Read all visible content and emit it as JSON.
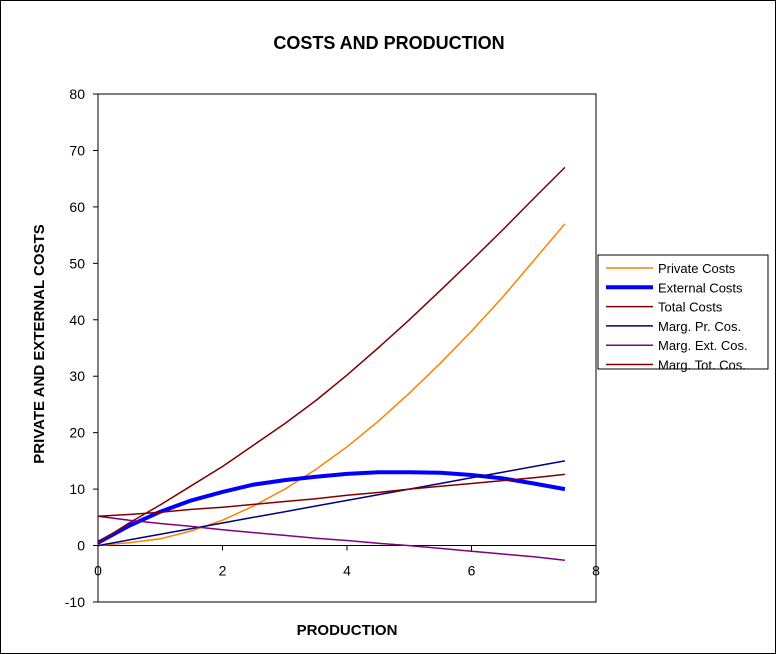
{
  "chart_data": {
    "type": "line",
    "title": "COSTS AND PRODUCTION",
    "xlabel": "PRODUCTION",
    "ylabel": "PRIVATE AND EXTERNAL COSTS",
    "xlim": [
      0,
      8
    ],
    "ylim": [
      -10,
      80
    ],
    "xticks": [
      0,
      2,
      4,
      6,
      8
    ],
    "yticks": [
      -10,
      0,
      10,
      20,
      30,
      40,
      50,
      60,
      70,
      80
    ],
    "grid": false,
    "legend_position": "right",
    "x": [
      0,
      0.5,
      1,
      1.5,
      2,
      2.5,
      3,
      3.5,
      4,
      4.5,
      5,
      5.5,
      6,
      6.5,
      7,
      7.5
    ],
    "series": [
      {
        "name": "Private Costs",
        "color": "#ff8000",
        "width": 1.5,
        "values": [
          0,
          0.5,
          1.2,
          2.6,
          4.5,
          7,
          10,
          13.5,
          17.5,
          22,
          27,
          32.3,
          38,
          44,
          50.5,
          57
        ]
      },
      {
        "name": "External Costs",
        "color": "#0000ff",
        "width": 4,
        "values": [
          0.5,
          3.5,
          6,
          8,
          9.5,
          10.8,
          11.6,
          12.2,
          12.7,
          13,
          13,
          12.9,
          12.5,
          11.9,
          11,
          10
        ]
      },
      {
        "name": "Total Costs",
        "color": "#800000",
        "width": 1.5,
        "values": [
          0.5,
          4,
          7.2,
          10.6,
          14,
          17.8,
          21.6,
          25.7,
          30.2,
          35,
          40,
          45.2,
          50.5,
          55.9,
          61.5,
          67
        ]
      },
      {
        "name": "Marg. Pr. Cos.",
        "color": "#000080",
        "width": 1.5,
        "values": [
          0,
          1,
          2,
          3,
          4,
          5,
          6,
          7,
          8,
          9,
          10,
          11,
          12,
          13,
          14,
          15
        ]
      },
      {
        "name": "Marg. Ext. Cos.",
        "color": "#800080",
        "width": 1.5,
        "values": [
          5.2,
          4.5,
          3.9,
          3.4,
          2.8,
          2.3,
          1.8,
          1.3,
          0.9,
          0.4,
          0,
          -0.5,
          -1,
          -1.5,
          -2,
          -2.6
        ]
      },
      {
        "name": "Marg. Tot. Cos.",
        "color": "#800000",
        "width": 1.5,
        "values": [
          5.2,
          5.5,
          5.9,
          6.4,
          6.8,
          7.3,
          7.8,
          8.3,
          8.9,
          9.4,
          10,
          10.5,
          11,
          11.5,
          12,
          12.6
        ]
      }
    ]
  }
}
